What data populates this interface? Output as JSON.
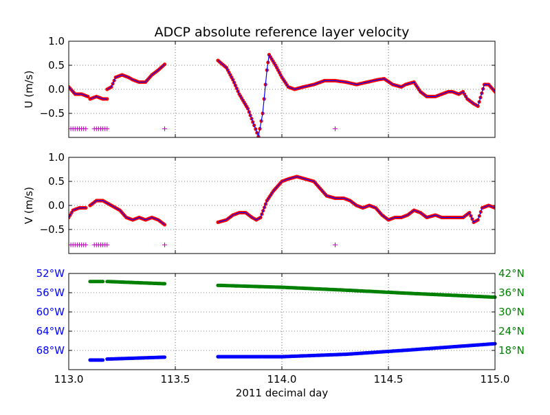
{
  "chart_data": {
    "type": "line",
    "title": "ADCP absolute reference layer velocity",
    "xlabel": "2011 decimal day",
    "xlim": [
      113.0,
      115.0
    ],
    "xticks": [
      113.0,
      113.5,
      114.0,
      114.5,
      115.0
    ],
    "xtick_labels": [
      "113.0",
      "113.5",
      "114.0",
      "114.5",
      "115.0"
    ],
    "colors": {
      "dots": "#ff0000",
      "line": "#0000ff",
      "marker": "#bf00bf",
      "lon": "#0000ff",
      "lat": "#008000"
    },
    "panels": [
      {
        "name": "U",
        "ylabel": "U (m/s)",
        "ylim": [
          -1.0,
          1.0
        ],
        "yticks": [
          -0.5,
          0.0,
          0.5,
          1.0
        ],
        "ytick_labels": [
          "−0.5",
          "0.0",
          "0.5",
          "1.0"
        ],
        "segments": [
          [
            [
              113.0,
              0.05
            ],
            [
              113.03,
              -0.1
            ],
            [
              113.06,
              -0.1
            ],
            [
              113.09,
              -0.15
            ]
          ],
          [
            [
              113.1,
              -0.2
            ],
            [
              113.13,
              -0.15
            ],
            [
              113.16,
              -0.2
            ],
            [
              113.18,
              -0.2
            ]
          ],
          [
            [
              113.18,
              0.0
            ],
            [
              113.2,
              0.05
            ],
            [
              113.22,
              0.25
            ],
            [
              113.25,
              0.3
            ],
            [
              113.28,
              0.25
            ],
            [
              113.3,
              0.2
            ],
            [
              113.33,
              0.15
            ],
            [
              113.36,
              0.15
            ],
            [
              113.39,
              0.3
            ],
            [
              113.42,
              0.4
            ],
            [
              113.45,
              0.52
            ]
          ],
          [
            [
              113.7,
              0.6
            ],
            [
              113.74,
              0.45
            ],
            [
              113.77,
              0.2
            ],
            [
              113.8,
              -0.1
            ],
            [
              113.84,
              -0.4
            ],
            [
              113.87,
              -0.75
            ],
            [
              113.89,
              -0.98
            ],
            [
              113.91,
              -0.5
            ],
            [
              113.93,
              0.4
            ],
            [
              113.94,
              0.72
            ],
            [
              113.97,
              0.5
            ],
            [
              114.0,
              0.25
            ],
            [
              114.03,
              0.05
            ],
            [
              114.06,
              0.0
            ],
            [
              114.1,
              0.05
            ],
            [
              114.15,
              0.1
            ],
            [
              114.2,
              0.18
            ],
            [
              114.25,
              0.18
            ],
            [
              114.3,
              0.15
            ],
            [
              114.35,
              0.1
            ],
            [
              114.4,
              0.15
            ],
            [
              114.45,
              0.2
            ],
            [
              114.48,
              0.22
            ],
            [
              114.52,
              0.1
            ],
            [
              114.56,
              0.05
            ],
            [
              114.58,
              0.1
            ],
            [
              114.62,
              0.15
            ],
            [
              114.65,
              -0.05
            ],
            [
              114.68,
              -0.15
            ],
            [
              114.72,
              -0.15
            ],
            [
              114.75,
              -0.1
            ],
            [
              114.78,
              -0.05
            ],
            [
              114.8,
              -0.05
            ],
            [
              114.83,
              -0.1
            ],
            [
              114.85,
              -0.05
            ],
            [
              114.87,
              -0.2
            ],
            [
              114.9,
              -0.3
            ],
            [
              114.92,
              -0.35
            ],
            [
              114.95,
              0.1
            ],
            [
              114.97,
              0.1
            ],
            [
              115.0,
              -0.05
            ]
          ]
        ],
        "markers": {
          "y": -0.82,
          "x": [
            113.01,
            113.02,
            113.03,
            113.04,
            113.05,
            113.06,
            113.07,
            113.08,
            113.12,
            113.13,
            113.14,
            113.15,
            113.16,
            113.17,
            113.18,
            113.45,
            114.25
          ]
        }
      },
      {
        "name": "V",
        "ylabel": "V (m/s)",
        "ylim": [
          -1.0,
          1.0
        ],
        "yticks": [
          -0.5,
          0.0,
          0.5,
          1.0
        ],
        "ytick_labels": [
          "−0.5",
          "0.0",
          "0.5",
          "1.0"
        ],
        "segments": [
          [
            [
              113.0,
              -0.25
            ],
            [
              113.02,
              -0.1
            ],
            [
              113.05,
              -0.05
            ],
            [
              113.08,
              -0.05
            ]
          ],
          [
            [
              113.1,
              0.0
            ],
            [
              113.13,
              0.1
            ],
            [
              113.16,
              0.1
            ],
            [
              113.2,
              0.0
            ],
            [
              113.24,
              -0.1
            ],
            [
              113.27,
              -0.25
            ],
            [
              113.3,
              -0.3
            ],
            [
              113.33,
              -0.25
            ],
            [
              113.36,
              -0.3
            ],
            [
              113.39,
              -0.25
            ],
            [
              113.42,
              -0.3
            ],
            [
              113.45,
              -0.4
            ]
          ],
          [
            [
              113.7,
              -0.35
            ],
            [
              113.74,
              -0.3
            ],
            [
              113.77,
              -0.2
            ],
            [
              113.8,
              -0.15
            ],
            [
              113.83,
              -0.15
            ],
            [
              113.86,
              -0.25
            ],
            [
              113.88,
              -0.3
            ],
            [
              113.9,
              -0.25
            ],
            [
              113.93,
              0.1
            ],
            [
              113.96,
              0.3
            ],
            [
              114.0,
              0.5
            ],
            [
              114.03,
              0.55
            ],
            [
              114.07,
              0.6
            ],
            [
              114.11,
              0.55
            ],
            [
              114.15,
              0.5
            ],
            [
              114.18,
              0.35
            ],
            [
              114.21,
              0.2
            ],
            [
              114.25,
              0.15
            ],
            [
              114.29,
              0.15
            ],
            [
              114.32,
              0.1
            ],
            [
              114.35,
              0.0
            ],
            [
              114.38,
              -0.05
            ],
            [
              114.41,
              0.0
            ],
            [
              114.44,
              -0.05
            ],
            [
              114.47,
              -0.2
            ],
            [
              114.5,
              -0.3
            ],
            [
              114.53,
              -0.25
            ],
            [
              114.56,
              -0.25
            ],
            [
              114.59,
              -0.2
            ],
            [
              114.62,
              -0.1
            ],
            [
              114.65,
              -0.15
            ],
            [
              114.68,
              -0.25
            ],
            [
              114.72,
              -0.2
            ],
            [
              114.75,
              -0.25
            ],
            [
              114.8,
              -0.25
            ],
            [
              114.85,
              -0.25
            ],
            [
              114.88,
              -0.15
            ],
            [
              114.9,
              -0.35
            ],
            [
              114.92,
              -0.3
            ],
            [
              114.94,
              -0.05
            ],
            [
              114.97,
              0.0
            ],
            [
              115.0,
              -0.05
            ]
          ]
        ],
        "markers": {
          "y": -0.82,
          "x": [
            113.01,
            113.02,
            113.03,
            113.04,
            113.05,
            113.06,
            113.07,
            113.08,
            113.12,
            113.13,
            113.14,
            113.15,
            113.16,
            113.17,
            113.18,
            113.45,
            114.25
          ]
        }
      }
    ],
    "position_panel": {
      "left_ylabel_ticks": [
        {
          "value": -52,
          "label": "52°W"
        },
        {
          "value": -56,
          "label": "56°W"
        },
        {
          "value": -60,
          "label": "60°W"
        },
        {
          "value": -64,
          "label": "64°W"
        },
        {
          "value": -68,
          "label": "68°W"
        }
      ],
      "left_ylim": [
        -72,
        -52
      ],
      "right_ylabel_ticks": [
        {
          "value": 42,
          "label": "42°N"
        },
        {
          "value": 36,
          "label": "36°N"
        },
        {
          "value": 30,
          "label": "30°N"
        },
        {
          "value": 24,
          "label": "24°N"
        },
        {
          "value": 18,
          "label": "18°N"
        }
      ],
      "right_ylim": [
        12,
        42
      ],
      "lon_segments": [
        [
          [
            113.1,
            -70.0
          ],
          [
            113.16,
            -70.0
          ]
        ],
        [
          [
            113.18,
            -69.8
          ],
          [
            113.45,
            -69.4
          ]
        ],
        [
          [
            113.7,
            -69.3
          ],
          [
            114.0,
            -69.3
          ],
          [
            114.3,
            -68.8
          ],
          [
            114.6,
            -67.9
          ],
          [
            115.0,
            -66.6
          ]
        ]
      ],
      "lat_segments": [
        [
          [
            113.1,
            39.5
          ],
          [
            113.16,
            39.5
          ]
        ],
        [
          [
            113.18,
            39.5
          ],
          [
            113.45,
            38.8
          ]
        ],
        [
          [
            113.7,
            38.3
          ],
          [
            114.0,
            37.7
          ],
          [
            114.3,
            36.8
          ],
          [
            114.6,
            35.8
          ],
          [
            115.0,
            34.6
          ]
        ]
      ]
    }
  }
}
